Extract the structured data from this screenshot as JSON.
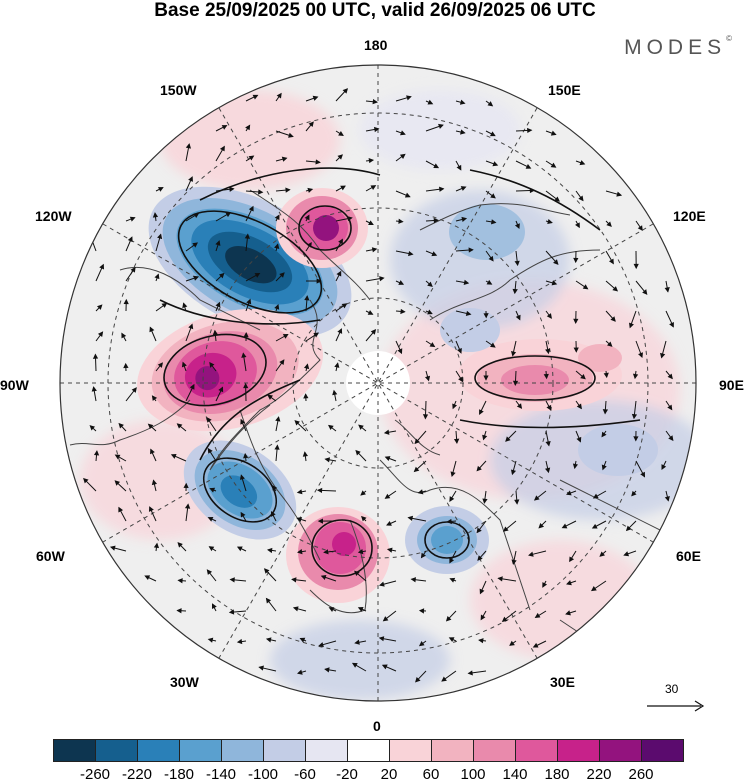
{
  "title": "Base 25/09/2025 00 UTC, valid 26/09/2025 06 UTC",
  "logo": "MODES",
  "logo_mark": "©",
  "longitude_labels": {
    "top": "180",
    "top_left": "150W",
    "top_right": "150E",
    "upper_left": "120W",
    "upper_right": "120E",
    "left": "90W",
    "right": "90E",
    "lower_left": "60W",
    "lower_right": "60E",
    "bottom_left": "30W",
    "bottom_right": "30E",
    "bottom": "0"
  },
  "reference_vector": {
    "value": "30"
  },
  "colorbar": {
    "ticks": [
      "-260",
      "-220",
      "-180",
      "-140",
      "-100",
      "-60",
      "-20",
      "20",
      "60",
      "100",
      "140",
      "180",
      "220",
      "260"
    ],
    "colors": [
      "#0d3550",
      "#155f8e",
      "#2a80b8",
      "#5aa0cf",
      "#8fb6db",
      "#c3cde6",
      "#e6e6f2",
      "#ffffff",
      "#f9d3d8",
      "#f2b3c0",
      "#e98aac",
      "#df589c",
      "#c7228a",
      "#93137e",
      "#5b0b6e"
    ]
  },
  "anomaly_centers": [
    {
      "name": "negative-gulf-of-alaska",
      "value": -260
    },
    {
      "name": "positive-bering",
      "value": 220
    },
    {
      "name": "positive-canada",
      "value": 220
    },
    {
      "name": "negative-north-atlantic",
      "value": -180
    },
    {
      "name": "positive-iceland-scandinavia",
      "value": 200
    },
    {
      "name": "negative-europe",
      "value": -140
    },
    {
      "name": "positive-siberia",
      "value": 140
    },
    {
      "name": "negative-east-siberia",
      "value": -100
    }
  ]
}
